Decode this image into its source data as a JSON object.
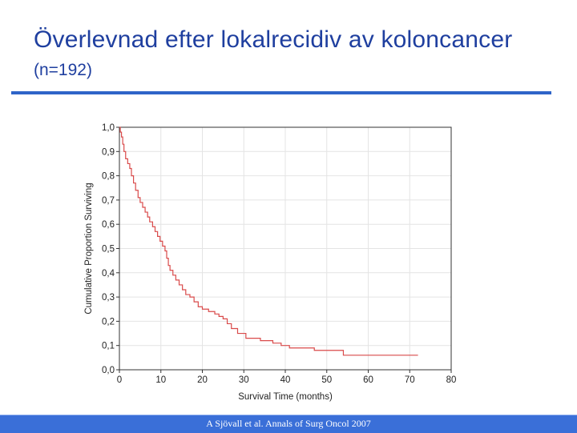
{
  "slide": {
    "title": "Överlevnad efter lokalrecidiv av koloncancer",
    "subtitle": "(n=192)",
    "footer": "A Sjövall et al. Annals of Surg Oncol 2007"
  },
  "colors": {
    "title": "#1f3f9f",
    "rule": "#2e64c8",
    "curve": "#d94a4a",
    "footer": "#3a6fd8"
  },
  "chart_data": {
    "type": "line",
    "step": true,
    "xlabel": "Survival Time (months)",
    "ylabel": "Cumulative Proportion Surviving",
    "xlim": [
      0,
      80
    ],
    "ylim": [
      0.0,
      1.0
    ],
    "xticks": [
      0,
      10,
      20,
      30,
      40,
      50,
      60,
      70,
      80
    ],
    "yticks": [
      "0,0",
      "0,1",
      "0,2",
      "0,3",
      "0,4",
      "0,5",
      "0,6",
      "0,7",
      "0,8",
      "0,9",
      "1,0"
    ],
    "yvalues": [
      0.0,
      0.1,
      0.2,
      0.3,
      0.4,
      0.5,
      0.6,
      0.7,
      0.8,
      0.9,
      1.0
    ],
    "grid": true,
    "series": [
      {
        "color": "#d94a4a",
        "points": [
          [
            0,
            1.0
          ],
          [
            0.2,
            0.98
          ],
          [
            0.5,
            0.96
          ],
          [
            0.8,
            0.93
          ],
          [
            1.1,
            0.9
          ],
          [
            1.5,
            0.87
          ],
          [
            2.0,
            0.85
          ],
          [
            2.5,
            0.83
          ],
          [
            2.9,
            0.8
          ],
          [
            3.4,
            0.77
          ],
          [
            3.9,
            0.74
          ],
          [
            4.5,
            0.71
          ],
          [
            5.0,
            0.69
          ],
          [
            5.6,
            0.67
          ],
          [
            6.2,
            0.65
          ],
          [
            6.8,
            0.63
          ],
          [
            7.3,
            0.61
          ],
          [
            8.0,
            0.59
          ],
          [
            8.6,
            0.57
          ],
          [
            9.2,
            0.55
          ],
          [
            9.8,
            0.53
          ],
          [
            10.4,
            0.51
          ],
          [
            11.0,
            0.49
          ],
          [
            11.4,
            0.46
          ],
          [
            11.8,
            0.43
          ],
          [
            12.2,
            0.41
          ],
          [
            12.9,
            0.39
          ],
          [
            13.6,
            0.37
          ],
          [
            14.4,
            0.35
          ],
          [
            15.2,
            0.33
          ],
          [
            16.0,
            0.31
          ],
          [
            17.0,
            0.3
          ],
          [
            18.0,
            0.28
          ],
          [
            19.0,
            0.26
          ],
          [
            20.0,
            0.25
          ],
          [
            21.5,
            0.24
          ],
          [
            23.0,
            0.23
          ],
          [
            24.0,
            0.22
          ],
          [
            25.0,
            0.21
          ],
          [
            26.0,
            0.19
          ],
          [
            27.0,
            0.17
          ],
          [
            28.5,
            0.15
          ],
          [
            30.5,
            0.13
          ],
          [
            34.0,
            0.12
          ],
          [
            37.0,
            0.11
          ],
          [
            39.0,
            0.1
          ],
          [
            41.0,
            0.09
          ],
          [
            47.0,
            0.08
          ],
          [
            54.0,
            0.06
          ],
          [
            72.0,
            0.06
          ]
        ]
      }
    ]
  }
}
